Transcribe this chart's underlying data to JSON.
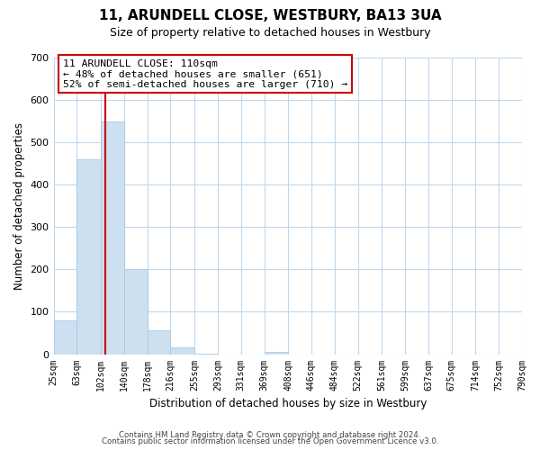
{
  "title": "11, ARUNDELL CLOSE, WESTBURY, BA13 3UA",
  "subtitle": "Size of property relative to detached houses in Westbury",
  "xlabel": "Distribution of detached houses by size in Westbury",
  "ylabel": "Number of detached properties",
  "bin_edges": [
    25,
    63,
    102,
    140,
    178,
    216,
    255,
    293,
    331,
    369,
    408,
    446,
    484,
    522,
    561,
    599,
    637,
    675,
    714,
    752,
    790
  ],
  "bar_heights": [
    80,
    460,
    550,
    200,
    57,
    15,
    2,
    0,
    0,
    5,
    0,
    0,
    0,
    0,
    0,
    0,
    0,
    0,
    0,
    0
  ],
  "bar_color": "#cde0f0",
  "bar_edge_color": "#a8c8e8",
  "property_line_x": 110,
  "property_line_color": "#cc0000",
  "ylim": [
    0,
    700
  ],
  "yticks": [
    0,
    100,
    200,
    300,
    400,
    500,
    600,
    700
  ],
  "tick_labels": [
    "25sqm",
    "63sqm",
    "102sqm",
    "140sqm",
    "178sqm",
    "216sqm",
    "255sqm",
    "293sqm",
    "331sqm",
    "369sqm",
    "408sqm",
    "446sqm",
    "484sqm",
    "522sqm",
    "561sqm",
    "599sqm",
    "637sqm",
    "675sqm",
    "714sqm",
    "752sqm",
    "790sqm"
  ],
  "annotation_title": "11 ARUNDELL CLOSE: 110sqm",
  "annotation_line1": "← 48% of detached houses are smaller (651)",
  "annotation_line2": "52% of semi-detached houses are larger (710) →",
  "annotation_box_color": "#ffffff",
  "annotation_box_edge": "#cc0000",
  "footer1": "Contains HM Land Registry data © Crown copyright and database right 2024.",
  "footer2": "Contains public sector information licensed under the Open Government Licence v3.0.",
  "background_color": "#ffffff",
  "grid_color": "#c0d8ee"
}
